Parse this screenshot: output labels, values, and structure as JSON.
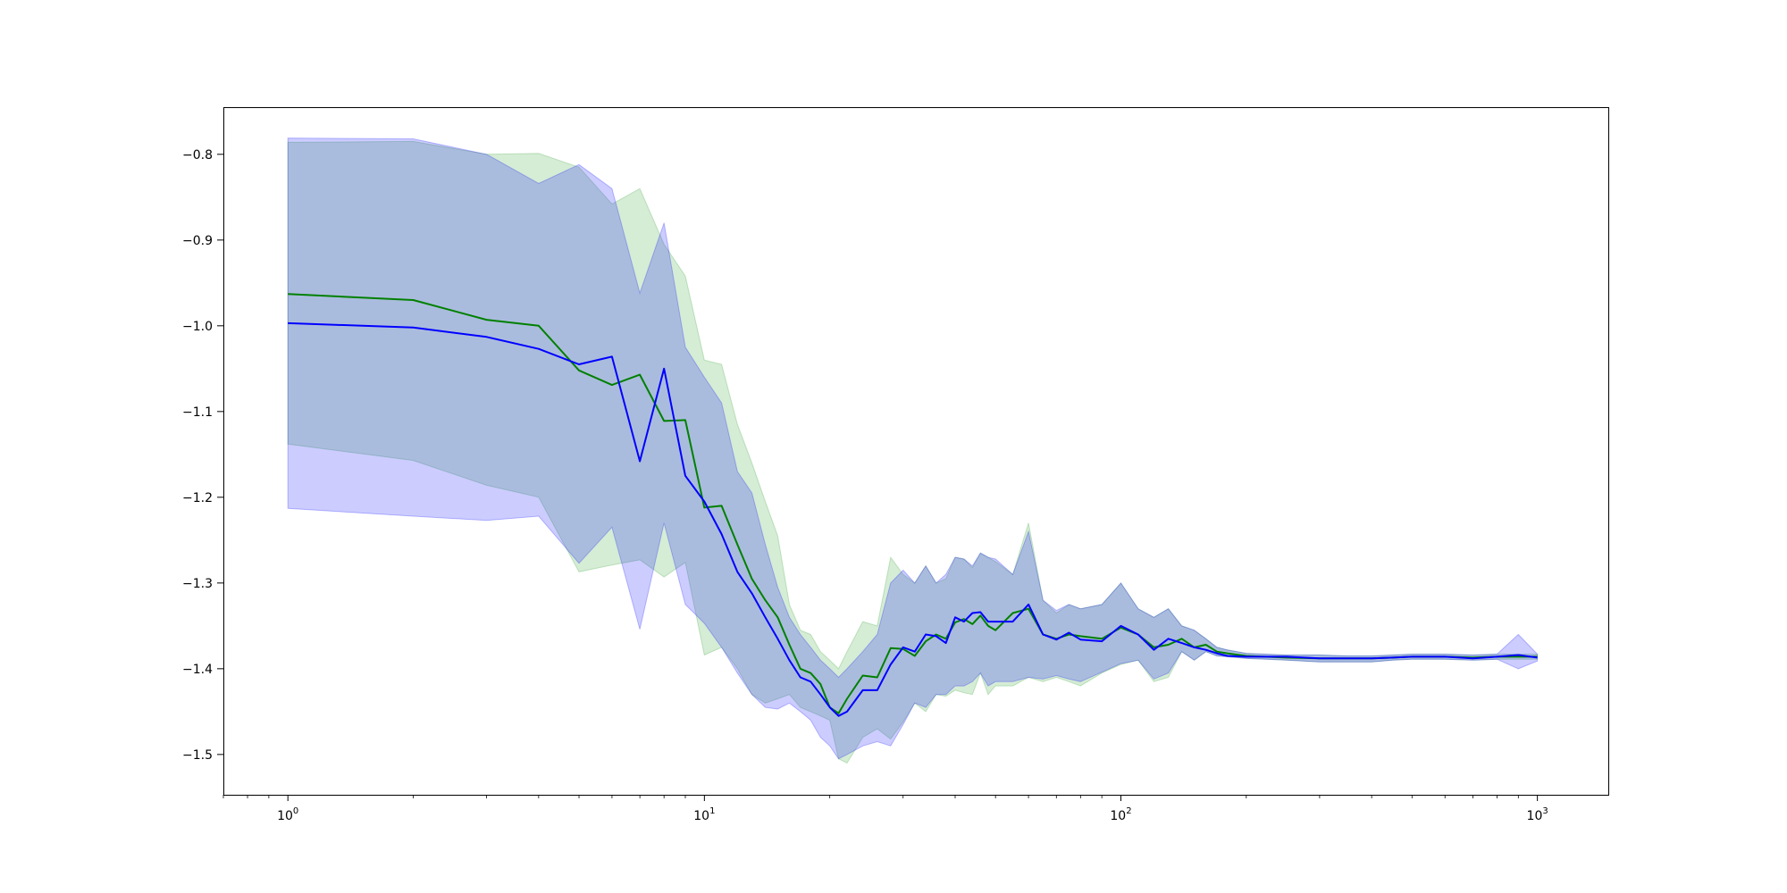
{
  "chart_data": {
    "type": "line",
    "title": "",
    "xlabel": "",
    "ylabel": "",
    "x_scale": "log",
    "xlim": [
      0.7,
      1480
    ],
    "ylim": [
      -1.547,
      -0.745
    ],
    "grid": false,
    "legend": "none",
    "x_ticks": [
      {
        "value": 1,
        "label": "10^0"
      },
      {
        "value": 10,
        "label": "10^1"
      },
      {
        "value": 100,
        "label": "10^2"
      },
      {
        "value": 1000,
        "label": "10^3"
      }
    ],
    "y_ticks": [
      {
        "value": -0.8,
        "label": "−0.8"
      },
      {
        "value": -0.9,
        "label": "−0.9"
      },
      {
        "value": -1.0,
        "label": "−1.0"
      },
      {
        "value": -1.1,
        "label": "−1.1"
      },
      {
        "value": -1.2,
        "label": "−1.2"
      },
      {
        "value": -1.3,
        "label": "−1.3"
      },
      {
        "value": -1.4,
        "label": "−1.4"
      },
      {
        "value": -1.5,
        "label": "−1.5"
      }
    ],
    "series": [
      {
        "color": "#008000",
        "band_color": "#2ca02c",
        "x": [
          1,
          2,
          3,
          4,
          5,
          6,
          7,
          8,
          9,
          10,
          11,
          12,
          13,
          14,
          15,
          16,
          17,
          18,
          19,
          20,
          21,
          22,
          24,
          26,
          28,
          30,
          32,
          34,
          36,
          38,
          40,
          42,
          44,
          46,
          48,
          50,
          55,
          60,
          65,
          70,
          75,
          80,
          90,
          100,
          110,
          120,
          130,
          140,
          150,
          160,
          170,
          180,
          200,
          250,
          300,
          350,
          400,
          450,
          500,
          600,
          700,
          800,
          900,
          1000
        ],
        "y": [
          -0.963,
          -0.97,
          -0.993,
          -1.0,
          -1.052,
          -1.069,
          -1.057,
          -1.111,
          -1.11,
          -1.212,
          -1.21,
          -1.255,
          -1.295,
          -1.32,
          -1.34,
          -1.372,
          -1.4,
          -1.405,
          -1.418,
          -1.445,
          -1.452,
          -1.435,
          -1.408,
          -1.41,
          -1.376,
          -1.377,
          -1.385,
          -1.368,
          -1.36,
          -1.365,
          -1.346,
          -1.342,
          -1.348,
          -1.338,
          -1.35,
          -1.355,
          -1.335,
          -1.33,
          -1.36,
          -1.365,
          -1.36,
          -1.362,
          -1.365,
          -1.352,
          -1.36,
          -1.375,
          -1.372,
          -1.365,
          -1.375,
          -1.372,
          -1.38,
          -1.382,
          -1.385,
          -1.387,
          -1.388,
          -1.388,
          -1.388,
          -1.387,
          -1.386,
          -1.386,
          -1.387,
          -1.386,
          -1.386,
          -1.386
        ],
        "upper": [
          -0.786,
          -0.785,
          -0.8,
          -0.799,
          -0.815,
          -0.858,
          -0.84,
          -0.905,
          -0.942,
          -1.04,
          -1.045,
          -1.115,
          -1.16,
          -1.205,
          -1.245,
          -1.325,
          -1.355,
          -1.36,
          -1.38,
          -1.39,
          -1.4,
          -1.38,
          -1.345,
          -1.35,
          -1.27,
          -1.29,
          -1.3,
          -1.28,
          -1.3,
          -1.295,
          -1.27,
          -1.272,
          -1.282,
          -1.265,
          -1.27,
          -1.275,
          -1.29,
          -1.23,
          -1.32,
          -1.335,
          -1.325,
          -1.33,
          -1.325,
          -1.3,
          -1.33,
          -1.34,
          -1.33,
          -1.35,
          -1.355,
          -1.365,
          -1.375,
          -1.378,
          -1.382,
          -1.384,
          -1.384,
          -1.385,
          -1.385,
          -1.384,
          -1.383,
          -1.383,
          -1.384,
          -1.383,
          -1.383,
          -1.383
        ],
        "lower": [
          -1.138,
          -1.157,
          -1.186,
          -1.2,
          -1.287,
          -1.279,
          -1.273,
          -1.293,
          -1.276,
          -1.384,
          -1.375,
          -1.4,
          -1.43,
          -1.44,
          -1.435,
          -1.43,
          -1.445,
          -1.45,
          -1.455,
          -1.46,
          -1.505,
          -1.51,
          -1.48,
          -1.47,
          -1.482,
          -1.462,
          -1.44,
          -1.45,
          -1.43,
          -1.432,
          -1.425,
          -1.428,
          -1.43,
          -1.405,
          -1.43,
          -1.42,
          -1.42,
          -1.41,
          -1.415,
          -1.41,
          -1.415,
          -1.42,
          -1.405,
          -1.395,
          -1.39,
          -1.415,
          -1.41,
          -1.38,
          -1.39,
          -1.38,
          -1.385,
          -1.386,
          -1.388,
          -1.39,
          -1.392,
          -1.392,
          -1.392,
          -1.39,
          -1.389,
          -1.389,
          -1.39,
          -1.389,
          -1.389,
          -1.389
        ]
      },
      {
        "color": "#0000ff",
        "band_color": "#0000ff",
        "x": [
          1,
          2,
          3,
          4,
          5,
          6,
          7,
          8,
          9,
          10,
          11,
          12,
          13,
          14,
          15,
          16,
          17,
          18,
          19,
          20,
          21,
          22,
          24,
          26,
          28,
          30,
          32,
          34,
          36,
          38,
          40,
          42,
          44,
          46,
          48,
          50,
          55,
          60,
          65,
          70,
          75,
          80,
          90,
          100,
          110,
          120,
          130,
          140,
          150,
          160,
          170,
          180,
          200,
          250,
          300,
          350,
          400,
          450,
          500,
          600,
          700,
          800,
          900,
          1000
        ],
        "y": [
          -0.997,
          -1.002,
          -1.013,
          -1.027,
          -1.045,
          -1.036,
          -1.158,
          -1.05,
          -1.175,
          -1.205,
          -1.243,
          -1.287,
          -1.312,
          -1.34,
          -1.365,
          -1.39,
          -1.41,
          -1.415,
          -1.43,
          -1.445,
          -1.455,
          -1.45,
          -1.425,
          -1.425,
          -1.395,
          -1.375,
          -1.38,
          -1.36,
          -1.362,
          -1.37,
          -1.34,
          -1.345,
          -1.335,
          -1.334,
          -1.345,
          -1.345,
          -1.345,
          -1.325,
          -1.36,
          -1.366,
          -1.358,
          -1.366,
          -1.368,
          -1.35,
          -1.36,
          -1.378,
          -1.365,
          -1.37,
          -1.375,
          -1.378,
          -1.382,
          -1.385,
          -1.386,
          -1.386,
          -1.388,
          -1.388,
          -1.388,
          -1.387,
          -1.386,
          -1.386,
          -1.388,
          -1.386,
          -1.384,
          -1.387
        ],
        "upper": [
          -0.781,
          -0.782,
          -0.8,
          -0.834,
          -0.812,
          -0.84,
          -0.962,
          -0.88,
          -1.025,
          -1.06,
          -1.09,
          -1.17,
          -1.195,
          -1.255,
          -1.305,
          -1.34,
          -1.36,
          -1.375,
          -1.39,
          -1.4,
          -1.41,
          -1.4,
          -1.38,
          -1.36,
          -1.3,
          -1.285,
          -1.3,
          -1.28,
          -1.3,
          -1.29,
          -1.27,
          -1.272,
          -1.28,
          -1.265,
          -1.27,
          -1.272,
          -1.29,
          -1.24,
          -1.32,
          -1.332,
          -1.325,
          -1.33,
          -1.325,
          -1.3,
          -1.33,
          -1.34,
          -1.33,
          -1.35,
          -1.355,
          -1.365,
          -1.375,
          -1.378,
          -1.382,
          -1.384,
          -1.384,
          -1.385,
          -1.385,
          -1.384,
          -1.383,
          -1.383,
          -1.384,
          -1.383,
          -1.36,
          -1.383
        ],
        "lower": [
          -1.213,
          -1.222,
          -1.227,
          -1.222,
          -1.277,
          -1.235,
          -1.354,
          -1.23,
          -1.325,
          -1.347,
          -1.375,
          -1.405,
          -1.43,
          -1.445,
          -1.447,
          -1.44,
          -1.45,
          -1.46,
          -1.48,
          -1.49,
          -1.505,
          -1.5,
          -1.49,
          -1.485,
          -1.49,
          -1.465,
          -1.44,
          -1.445,
          -1.43,
          -1.43,
          -1.42,
          -1.42,
          -1.415,
          -1.405,
          -1.42,
          -1.415,
          -1.415,
          -1.41,
          -1.412,
          -1.408,
          -1.412,
          -1.415,
          -1.404,
          -1.394,
          -1.39,
          -1.412,
          -1.405,
          -1.38,
          -1.39,
          -1.38,
          -1.385,
          -1.386,
          -1.388,
          -1.39,
          -1.392,
          -1.392,
          -1.392,
          -1.39,
          -1.389,
          -1.389,
          -1.39,
          -1.389,
          -1.4,
          -1.391
        ]
      }
    ]
  }
}
